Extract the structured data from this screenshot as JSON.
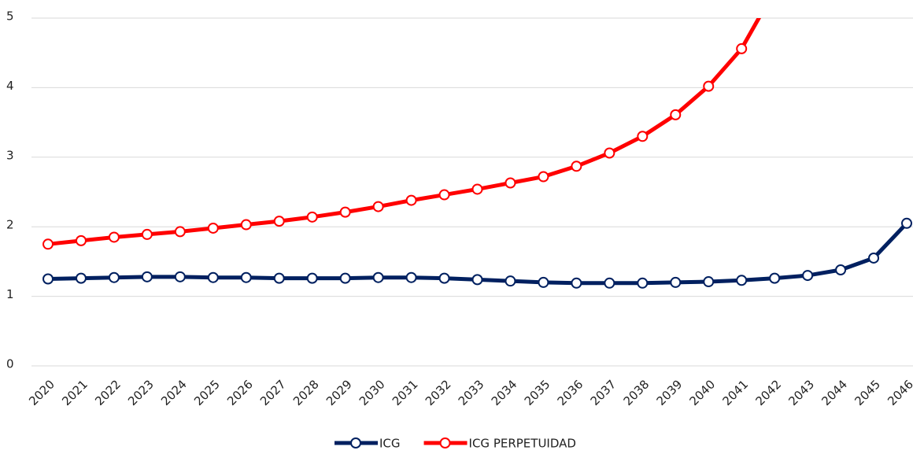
{
  "chart_data": {
    "type": "line",
    "categories": [
      "2020",
      "2021",
      "2022",
      "2023",
      "2024",
      "2025",
      "2026",
      "2027",
      "2028",
      "2029",
      "2030",
      "2031",
      "2032",
      "2033",
      "2034",
      "2035",
      "2036",
      "2037",
      "2038",
      "2039",
      "2040",
      "2041",
      "2042",
      "2043",
      "2044",
      "2045",
      "2046"
    ],
    "series": [
      {
        "name": "ICG",
        "color": "#002060",
        "values": [
          1.25,
          1.26,
          1.27,
          1.28,
          1.28,
          1.27,
          1.27,
          1.26,
          1.26,
          1.26,
          1.27,
          1.27,
          1.26,
          1.24,
          1.22,
          1.2,
          1.19,
          1.19,
          1.19,
          1.2,
          1.21,
          1.23,
          1.26,
          1.3,
          1.38,
          1.55,
          2.05
        ]
      },
      {
        "name": "ICG PERPETUIDAD",
        "color": "#ff0000",
        "values": [
          1.75,
          1.8,
          1.85,
          1.89,
          1.93,
          1.98,
          2.03,
          2.08,
          2.14,
          2.21,
          2.29,
          2.38,
          2.46,
          2.54,
          2.63,
          2.72,
          2.87,
          3.06,
          3.3,
          3.61,
          4.02,
          4.56,
          5.4,
          null,
          null,
          null,
          null
        ]
      }
    ],
    "ylim": [
      0,
      5
    ],
    "yticks": [
      0,
      1,
      2,
      3,
      4,
      5
    ],
    "grid": true,
    "legend": "bottom"
  }
}
